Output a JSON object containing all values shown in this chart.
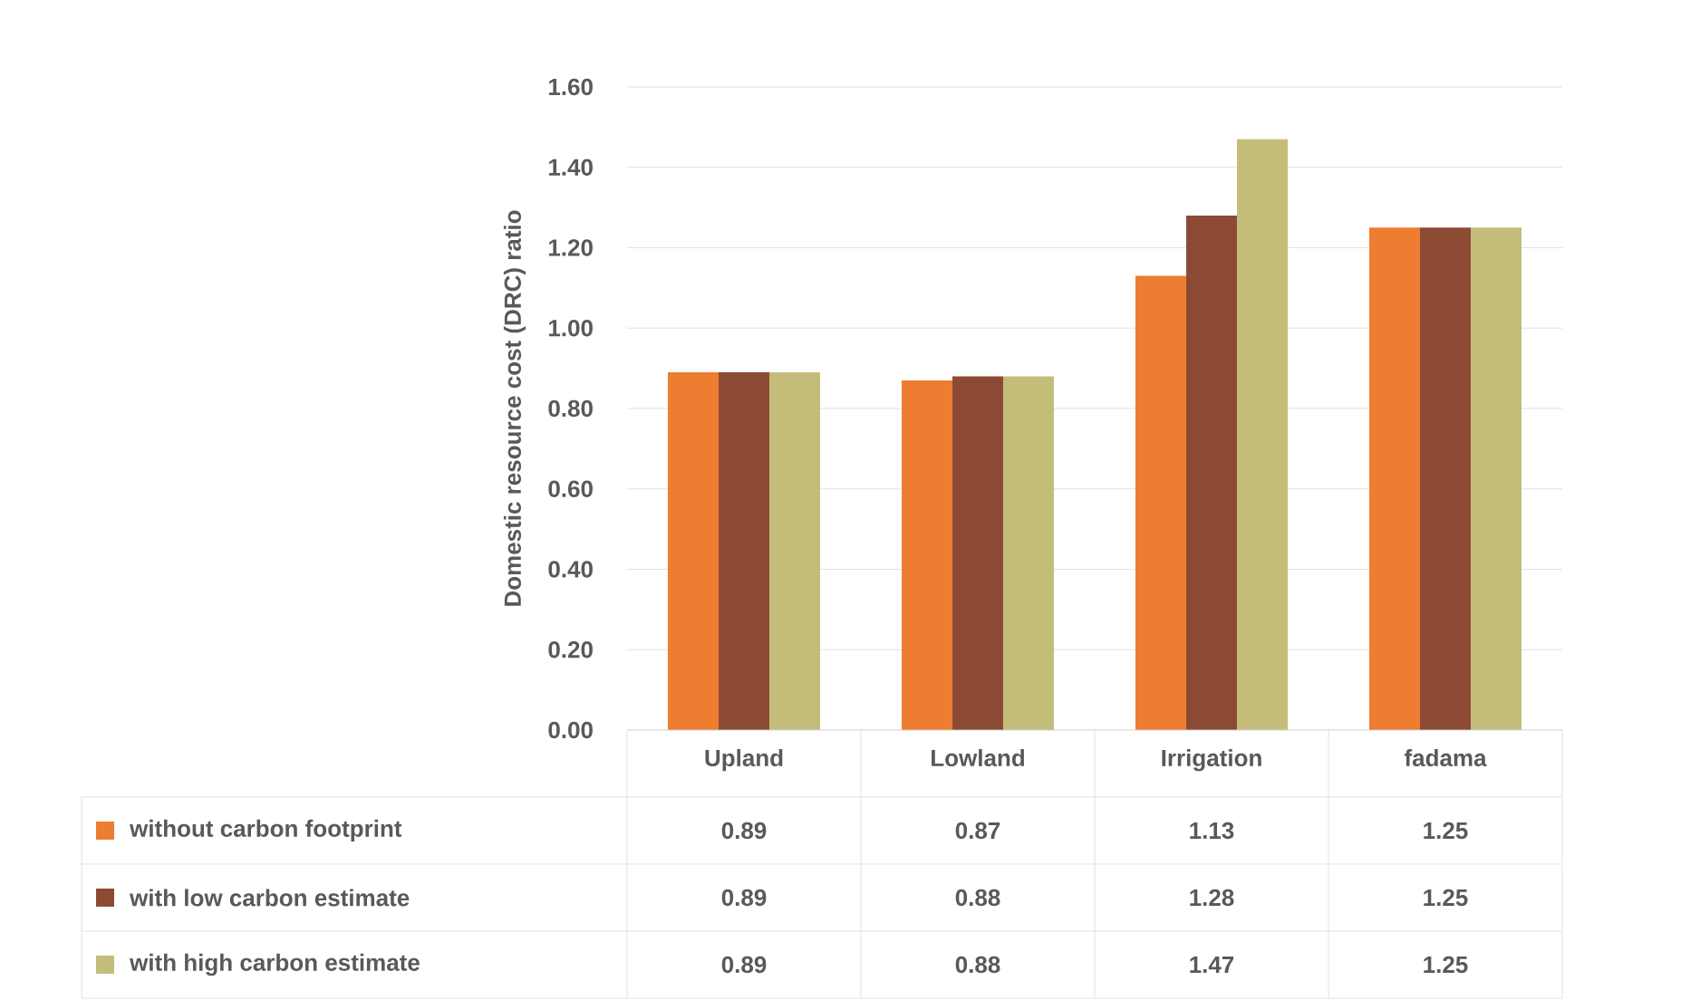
{
  "chart_data": {
    "type": "bar",
    "ylabel": "Domestic resource cost (DRC) ratio",
    "categories": [
      "Upland",
      "Lowland",
      "Irrigation",
      "fadama"
    ],
    "series": [
      {
        "name": "without carbon footprint",
        "color": "#ed7d31",
        "values": [
          0.89,
          0.87,
          1.13,
          1.25
        ]
      },
      {
        "name": "with low carbon estimate",
        "color": "#8c4a35",
        "values": [
          0.89,
          0.88,
          1.28,
          1.25
        ]
      },
      {
        "name": "with high carbon estimate",
        "color": "#c4bd7a",
        "values": [
          0.89,
          0.88,
          1.47,
          1.25
        ]
      }
    ],
    "ylim": [
      0,
      1.6
    ],
    "yticks": [
      {
        "value": 0,
        "label": "0.00"
      },
      {
        "value": 0.2,
        "label": "0.20"
      },
      {
        "value": 0.4,
        "label": "0.40"
      },
      {
        "value": 0.6,
        "label": "0.60"
      },
      {
        "value": 0.8,
        "label": "0.80"
      },
      {
        "value": 1.0,
        "label": "1.00"
      },
      {
        "value": 1.2,
        "label": "1.20"
      },
      {
        "value": 1.4,
        "label": "1.40"
      },
      {
        "value": 1.6,
        "label": "1.60"
      }
    ],
    "grid": "y",
    "legend": "bottom",
    "data_labels": true
  }
}
